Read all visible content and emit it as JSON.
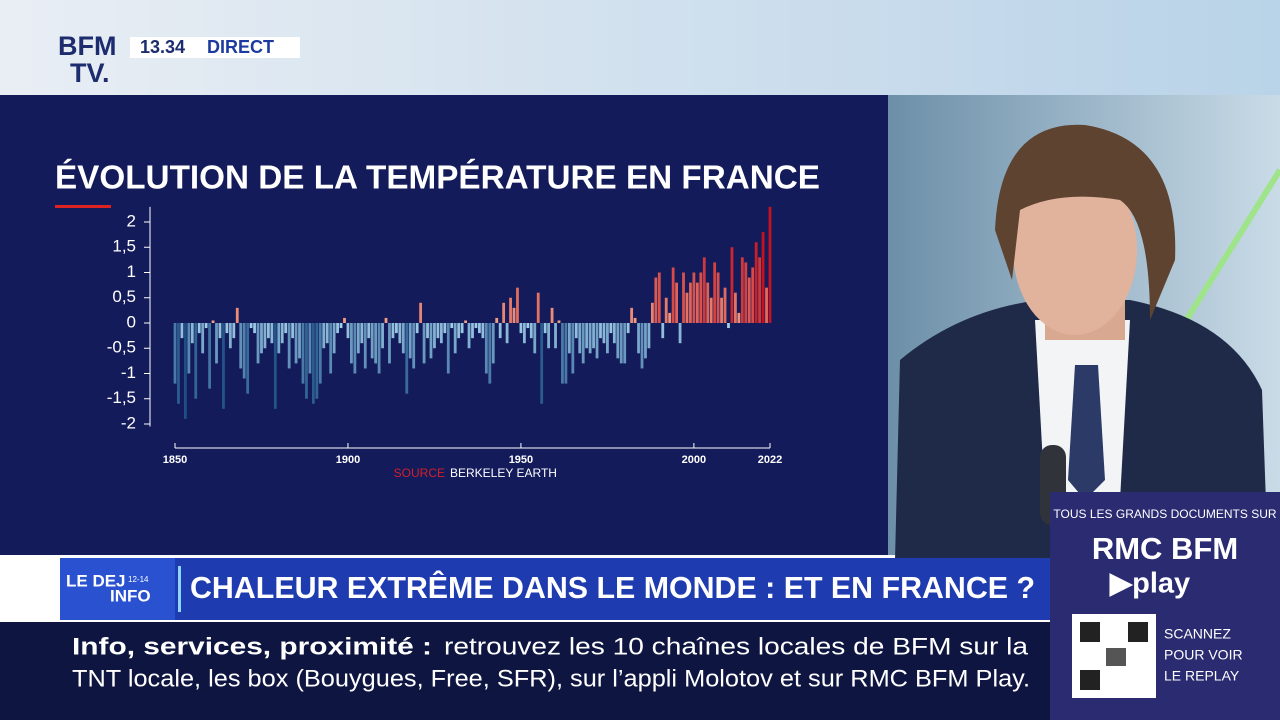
{
  "header": {
    "logo_line1": "BFM",
    "logo_line2": "TV.",
    "time": "13.34",
    "live": "DIRECT"
  },
  "chart_data": {
    "type": "bar",
    "title": "ÉVOLUTION DE LA TEMPÉRATURE EN FRANCE",
    "source_label": "SOURCE",
    "source": "BERKELEY EARTH",
    "x": [
      1850,
      1851,
      1852,
      1853,
      1854,
      1855,
      1856,
      1857,
      1858,
      1859,
      1860,
      1861,
      1862,
      1863,
      1864,
      1865,
      1866,
      1867,
      1868,
      1869,
      1870,
      1871,
      1872,
      1873,
      1874,
      1875,
      1876,
      1877,
      1878,
      1879,
      1880,
      1881,
      1882,
      1883,
      1884,
      1885,
      1886,
      1887,
      1888,
      1889,
      1890,
      1891,
      1892,
      1893,
      1894,
      1895,
      1896,
      1897,
      1898,
      1899,
      1900,
      1901,
      1902,
      1903,
      1904,
      1905,
      1906,
      1907,
      1908,
      1909,
      1910,
      1911,
      1912,
      1913,
      1914,
      1915,
      1916,
      1917,
      1918,
      1919,
      1920,
      1921,
      1922,
      1923,
      1924,
      1925,
      1926,
      1927,
      1928,
      1929,
      1930,
      1931,
      1932,
      1933,
      1934,
      1935,
      1936,
      1937,
      1938,
      1939,
      1940,
      1941,
      1942,
      1943,
      1944,
      1945,
      1946,
      1947,
      1948,
      1949,
      1950,
      1951,
      1952,
      1953,
      1954,
      1955,
      1956,
      1957,
      1958,
      1959,
      1960,
      1961,
      1962,
      1963,
      1964,
      1965,
      1966,
      1967,
      1968,
      1969,
      1970,
      1971,
      1972,
      1973,
      1974,
      1975,
      1976,
      1977,
      1978,
      1979,
      1980,
      1981,
      1982,
      1983,
      1984,
      1985,
      1986,
      1987,
      1988,
      1989,
      1990,
      1991,
      1992,
      1993,
      1994,
      1995,
      1996,
      1997,
      1998,
      1999,
      2000,
      2001,
      2002,
      2003,
      2004,
      2005,
      2006,
      2007,
      2008,
      2009,
      2010,
      2011,
      2012,
      2013,
      2014,
      2015,
      2016,
      2017,
      2018,
      2019,
      2020,
      2021,
      2022
    ],
    "values": [
      -1.2,
      -1.6,
      -0.3,
      -1.9,
      -1.0,
      -0.4,
      -1.5,
      -0.2,
      -0.6,
      -0.1,
      -1.3,
      0.05,
      -0.8,
      -0.3,
      -1.7,
      -0.2,
      -0.5,
      -0.3,
      0.3,
      -0.9,
      -1.1,
      -1.4,
      -0.1,
      -0.2,
      -0.8,
      -0.6,
      -0.5,
      -0.3,
      -0.4,
      -1.7,
      -0.6,
      -0.4,
      -0.2,
      -0.9,
      -0.3,
      -0.8,
      -0.7,
      -1.2,
      -1.5,
      -1.0,
      -1.6,
      -1.5,
      -1.2,
      -0.5,
      -0.4,
      -1.0,
      -0.6,
      -0.2,
      -0.1,
      0.1,
      -0.3,
      -0.8,
      -1.0,
      -0.6,
      -0.4,
      -0.9,
      -0.3,
      -0.7,
      -0.8,
      -1.0,
      -0.5,
      0.1,
      -0.8,
      -0.3,
      -0.2,
      -0.4,
      -0.6,
      -1.4,
      -0.7,
      -0.9,
      -0.2,
      0.4,
      -0.8,
      -0.3,
      -0.7,
      -0.5,
      -0.3,
      -0.4,
      -0.2,
      -1.0,
      -0.1,
      -0.6,
      -0.3,
      -0.2,
      0.05,
      -0.5,
      -0.3,
      -0.1,
      -0.2,
      -0.3,
      -1.0,
      -1.2,
      -0.8,
      0.1,
      -0.3,
      0.4,
      -0.4,
      0.5,
      0.3,
      0.7,
      -0.2,
      -0.4,
      -0.1,
      -0.3,
      -0.6,
      0.6,
      -1.6,
      -0.2,
      -0.5,
      0.3,
      -0.5,
      0.05,
      -1.2,
      -1.2,
      -0.6,
      -1.0,
      -0.3,
      -0.6,
      -0.8,
      -0.5,
      -0.6,
      -0.5,
      -0.7,
      -0.3,
      -0.4,
      -0.6,
      -0.2,
      -0.4,
      -0.7,
      -0.8,
      -0.8,
      -0.2,
      0.3,
      0.1,
      -0.6,
      -0.9,
      -0.7,
      -0.5,
      0.4,
      0.9,
      1.0,
      -0.3,
      0.5,
      0.2,
      1.1,
      0.8,
      -0.4,
      1.0,
      0.6,
      0.8,
      1.0,
      0.8,
      1.0,
      1.3,
      0.8,
      0.5,
      1.2,
      1.0,
      0.5,
      0.7,
      -0.1,
      1.5,
      0.6,
      0.2,
      1.3,
      1.2,
      0.9,
      1.1,
      1.6,
      1.3,
      1.8,
      0.7,
      2.3
    ],
    "xlim": [
      1850,
      2022
    ],
    "xticks": [
      1850,
      1900,
      1950,
      2000,
      2022
    ],
    "ylim": [
      -2.05,
      2.3
    ],
    "yticks": [
      2,
      {
        "value": 1.5,
        "label": "1,5"
      },
      1,
      {
        "value": 0.5,
        "label": "0,5"
      },
      0,
      {
        "value": -0.5,
        "label": "-0,5"
      },
      -1,
      {
        "value": -1.5,
        "label": "-1,5"
      },
      -2
    ],
    "color_scale": {
      "negative": [
        "#a9d6ee",
        "#1d4f86"
      ],
      "positive": [
        "#f3a58a",
        "#c4121e"
      ]
    }
  },
  "chyron": {
    "program_line1": "LE DEJ",
    "program_line2": "INFO",
    "program_hours": "12-14",
    "headline": "CHALEUR EXTRÊME DANS LE MONDE : ET EN FRANCE ?"
  },
  "ticker": {
    "lead": "Info, services, proximité :",
    "line1": "retrouvez les 10 chaînes locales de BFM sur la",
    "line2": "TNT locale, les box (Bouygues, Free, SFR), sur l’appli Molotov et sur RMC BFM Play."
  },
  "promo": {
    "intro": "TOUS LES GRANDS DOCUMENTS SUR",
    "brand": "RMC BFM",
    "play": "▶play",
    "cta1": "SCANNEZ",
    "cta2": "POUR VOIR",
    "cta3": "LE REPLAY"
  }
}
